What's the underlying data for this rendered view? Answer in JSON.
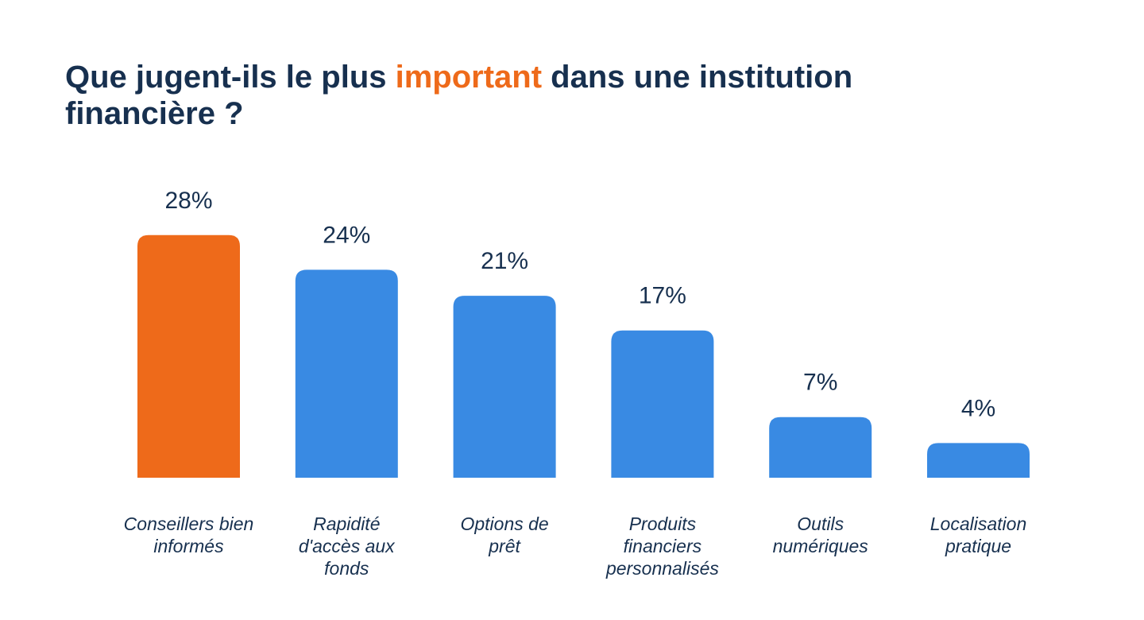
{
  "title": {
    "before": "Que jugent-ils le plus ",
    "accent": "important",
    "after": " dans une institution financière ?"
  },
  "colors": {
    "title": "#17304f",
    "accent": "#ee6a1a",
    "highlight_bar": "#ee6a1a",
    "bar": "#398ae3",
    "text": "#17304f"
  },
  "chart_data": {
    "type": "bar",
    "categories": [
      [
        "Conseillers bien",
        "informés"
      ],
      [
        "Rapidité",
        "d'accès aux",
        "fonds"
      ],
      [
        "Options de",
        "prêt"
      ],
      [
        "Produits",
        "financiers",
        "personnalisés"
      ],
      [
        "Outils",
        "numériques"
      ],
      [
        "Localisation",
        "pratique"
      ]
    ],
    "values": [
      28,
      24,
      21,
      17,
      7,
      4
    ],
    "value_labels": [
      "28%",
      "24%",
      "21%",
      "17%",
      "7%",
      "4%"
    ],
    "highlight_index": 0,
    "ylim": [
      0,
      30
    ],
    "grid": false,
    "legend": "none"
  }
}
